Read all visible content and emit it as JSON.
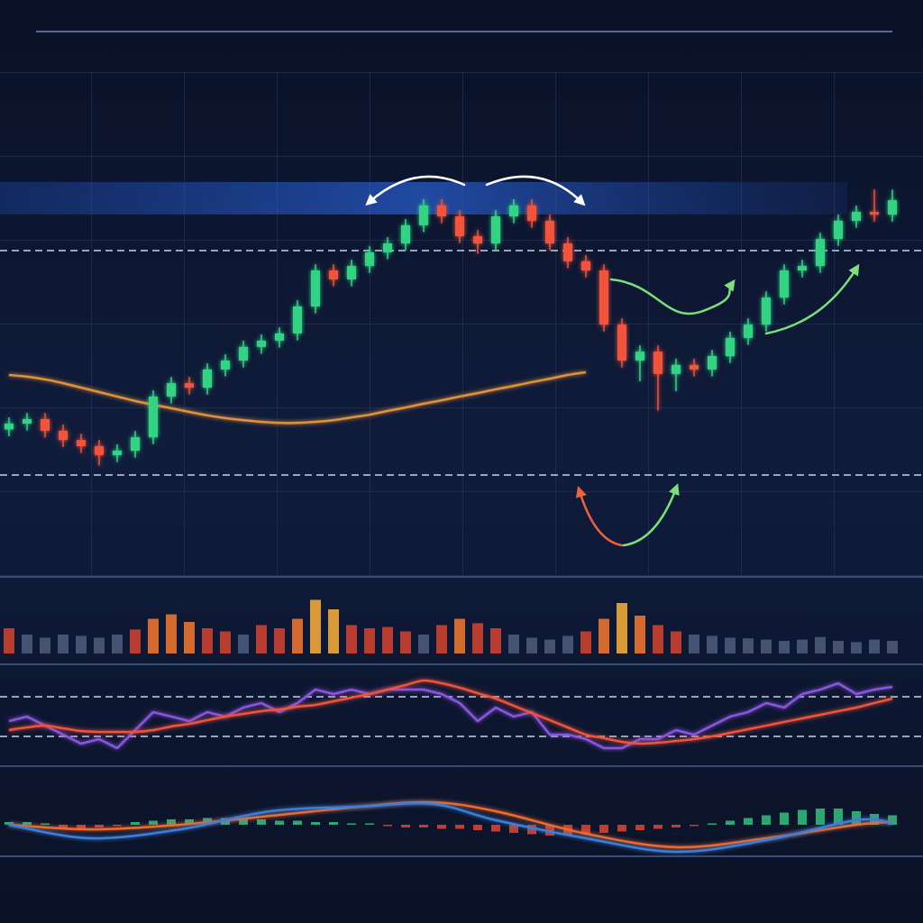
{
  "chart_data": [
    {
      "type": "candlestick",
      "open": [
        22.0,
        23.7,
        25.0,
        21.6,
        18.9,
        17.1,
        14.5,
        15.8,
        19.7,
        31.6,
        35.5,
        34.2,
        39.5,
        42.1,
        46.1,
        47.9,
        50.0,
        57.9,
        68.4,
        65.8,
        69.7,
        73.7,
        76.3,
        81.6,
        87.4,
        84.2,
        78.4,
        76.3,
        84.2,
        87.4,
        82.9,
        76.3,
        71.1,
        68.4,
        52.6,
        42.1,
        44.7,
        38.2,
        40.8,
        39.5,
        43.4,
        48.7,
        52.6,
        60.5,
        68.4,
        69.7,
        77.6,
        82.9,
        85.5,
        84.7
      ],
      "high": [
        25.5,
        26.8,
        26.8,
        23.4,
        20.7,
        18.9,
        17.6,
        21.5,
        33.4,
        37.3,
        37.3,
        41.3,
        43.9,
        47.9,
        49.7,
        51.8,
        59.7,
        70.2,
        70.2,
        71.5,
        75.5,
        78.1,
        83.4,
        89.2,
        89.2,
        86.0,
        80.2,
        86.0,
        89.2,
        89.2,
        84.7,
        78.1,
        72.9,
        70.2,
        54.4,
        46.5,
        46.5,
        42.6,
        42.6,
        45.2,
        50.5,
        54.4,
        62.3,
        70.2,
        71.5,
        79.4,
        84.7,
        87.3,
        92.0,
        92.0
      ],
      "low": [
        20.0,
        21.7,
        19.6,
        16.9,
        15.1,
        11.5,
        12.5,
        13.8,
        17.7,
        29.6,
        32.2,
        32.2,
        37.5,
        40.1,
        44.1,
        45.9,
        48.0,
        55.9,
        63.8,
        63.8,
        67.7,
        71.7,
        74.3,
        79.6,
        82.2,
        76.4,
        73.3,
        74.3,
        82.2,
        80.9,
        74.3,
        69.1,
        66.4,
        50.6,
        40.1,
        36.1,
        27.5,
        33.2,
        37.5,
        37.5,
        41.4,
        46.7,
        50.6,
        58.5,
        66.4,
        67.7,
        75.6,
        80.9,
        82.7,
        82.7
      ],
      "close": [
        23.7,
        25.0,
        21.6,
        18.9,
        17.1,
        14.5,
        15.8,
        19.7,
        31.6,
        35.5,
        34.2,
        39.5,
        42.1,
        46.1,
        47.9,
        50.0,
        57.9,
        68.4,
        65.8,
        69.7,
        73.7,
        76.3,
        81.6,
        87.4,
        84.2,
        78.4,
        76.3,
        84.2,
        87.4,
        82.9,
        76.3,
        71.1,
        68.4,
        52.6,
        42.1,
        44.7,
        38.2,
        40.8,
        39.5,
        43.4,
        48.7,
        52.6,
        60.5,
        68.4,
        69.7,
        77.6,
        82.9,
        85.5,
        84.7,
        88.9
      ],
      "up_color": "#33d484",
      "down_color": "#f2523b",
      "series": [
        {
          "color": "#e0913a",
          "smooth": true,
          "values": [
            37.9,
            37.4,
            36.6,
            35.5,
            34.2,
            32.9,
            31.6,
            30.3,
            29.2,
            28.2,
            27.1,
            26.1,
            25.3,
            24.7,
            24.2,
            23.9,
            23.9,
            24.2,
            24.7,
            25.5,
            26.3,
            27.4,
            28.4,
            29.5,
            30.5,
            31.6,
            32.6,
            33.7,
            34.7,
            35.8,
            36.8,
            37.9,
            38.7,
            null,
            null,
            null,
            null,
            null,
            null,
            null,
            null,
            null,
            null,
            null,
            null,
            null,
            null,
            null,
            null,
            null
          ]
        }
      ],
      "reference_lines": [
        74.2,
        8.7
      ],
      "band": 89.5,
      "ylim": [
        0,
        100
      ]
    },
    {
      "type": "bar",
      "values": [
        40,
        30,
        25,
        30,
        28,
        25,
        30,
        38,
        55,
        62,
        50,
        40,
        35,
        30,
        45,
        40,
        55,
        85,
        70,
        45,
        40,
        42,
        35,
        30,
        45,
        55,
        48,
        40,
        30,
        25,
        22,
        28,
        35,
        55,
        80,
        60,
        45,
        35,
        30,
        28,
        25,
        24,
        22,
        20,
        22,
        26,
        20,
        18,
        22,
        20
      ],
      "colors": [
        "#c9412f",
        "#4b5a7a",
        "#4b5a7a",
        "#4b5a7a",
        "#4b5a7a",
        "#4b5a7a",
        "#4b5a7a",
        "#c9412f",
        "#e8742c",
        "#e8742c",
        "#e8742c",
        "#c9412f",
        "#c9412f",
        "#4b5a7a",
        "#c9412f",
        "#c9412f",
        "#e8742c",
        "#f2a93b",
        "#f2a93b",
        "#c9412f",
        "#c9412f",
        "#c9412f",
        "#c9412f",
        "#4b5a7a",
        "#c9412f",
        "#e8742c",
        "#c9412f",
        "#c9412f",
        "#4b5a7a",
        "#4b5a7a",
        "#4b5a7a",
        "#4b5a7a",
        "#c9412f",
        "#e8742c",
        "#f2a93b",
        "#e8742c",
        "#c9412f",
        "#c9412f",
        "#4b5a7a",
        "#4b5a7a",
        "#4b5a7a",
        "#4b5a7a",
        "#4b5a7a",
        "#4b5a7a",
        "#4b5a7a",
        "#4b5a7a",
        "#4b5a7a",
        "#4b5a7a",
        "#4b5a7a",
        "#4b5a7a"
      ],
      "ylim": [
        0,
        100
      ]
    },
    {
      "type": "line",
      "series": [
        {
          "color": "#8b55e0",
          "smooth": false,
          "values": [
            42.1,
            47.4,
            36.8,
            26.3,
            15.8,
            21.1,
            10.5,
            31.6,
            52.6,
            47.4,
            42.1,
            52.6,
            47.4,
            57.9,
            63.2,
            52.6,
            63.2,
            78.9,
            73.7,
            78.9,
            73.7,
            78.9,
            78.9,
            78.9,
            73.7,
            63.2,
            42.1,
            57.9,
            47.4,
            52.6,
            26.3,
            26.3,
            21.1,
            10.5,
            10.5,
            21.1,
            21.1,
            31.6,
            26.3,
            36.8,
            47.4,
            52.6,
            63.2,
            57.9,
            73.7,
            78.9,
            86.3,
            73.7,
            78.9,
            82.1
          ]
        },
        {
          "color": "#f0533a",
          "smooth": true,
          "values": [
            31.6,
            34.7,
            36.8,
            33.7,
            30.5,
            29.5,
            29.5,
            29.5,
            31.6,
            35.8,
            38.9,
            43.2,
            47.4,
            50.5,
            53.7,
            55.8,
            58.9,
            61.1,
            65.3,
            69.5,
            73.7,
            78.9,
            84.2,
            89.5,
            86.3,
            81.1,
            74.7,
            68.4,
            60.0,
            51.6,
            43.2,
            34.7,
            26.3,
            22.1,
            17.9,
            15.8,
            16.8,
            18.9,
            21.1,
            24.2,
            28.4,
            32.6,
            36.8,
            41.1,
            45.3,
            49.5,
            53.7,
            57.9,
            63.2,
            68.4
          ]
        }
      ],
      "reference_lines": [
        70.5,
        24.2
      ],
      "ylim": [
        0,
        100
      ]
    },
    {
      "type": "macd",
      "values": [
        1,
        1,
        0.5,
        -1,
        -1.5,
        -1,
        -0.5,
        1,
        1.5,
        2,
        2,
        2.5,
        2.5,
        2,
        2,
        1.5,
        1.5,
        1,
        1,
        0.5,
        0.5,
        -0.5,
        -1,
        -1,
        -1.5,
        -1.5,
        -2,
        -2.5,
        -3,
        -3.5,
        -4,
        -4,
        -3.5,
        -3,
        -2.5,
        -2,
        -1.5,
        -1,
        -0.5,
        0.5,
        1.5,
        2.5,
        3.5,
        4.5,
        5.5,
        6,
        6,
        5,
        4,
        3.5
      ],
      "up_color": "#2fb87a",
      "down_color": "#d8402f",
      "series": [
        {
          "color": "#f06a2e",
          "smooth": true,
          "x": [
            0,
            4.5,
            9.5,
            14.5,
            19.5,
            23.5,
            27,
            32,
            37,
            42,
            47,
            49
          ],
          "values": [
            0,
            -1.7,
            0,
            3.3,
            6.7,
            8.3,
            5,
            -3.3,
            -8.3,
            -5,
            0,
            1
          ]
        },
        {
          "color": "#3d7fd6",
          "smooth": true,
          "x": [
            0,
            4.5,
            9.5,
            14.5,
            19.5,
            23.5,
            27,
            32,
            37,
            42,
            47,
            49
          ],
          "values": [
            0,
            -5,
            -1.7,
            5,
            6.7,
            7.7,
            1.7,
            -5,
            -10,
            -5.7,
            1.7,
            0.7
          ]
        }
      ],
      "ylim": [
        -10,
        10
      ]
    }
  ]
}
